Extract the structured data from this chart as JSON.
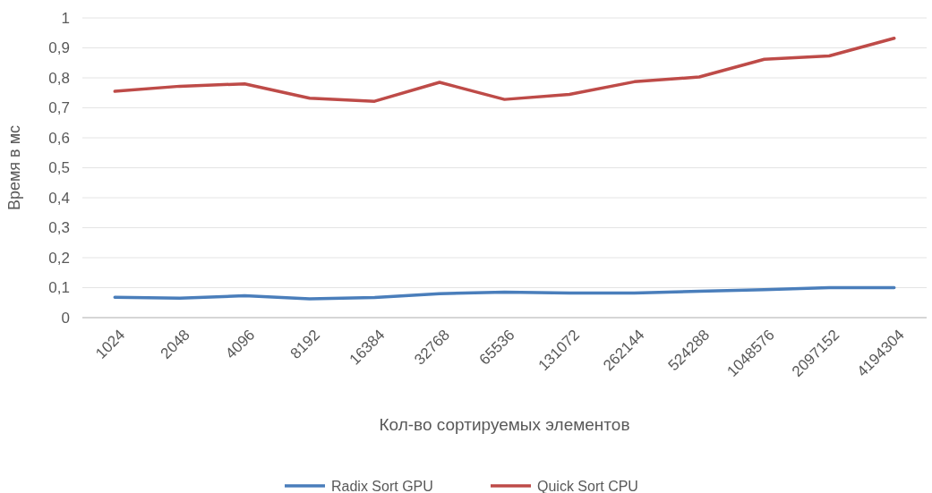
{
  "chart_data": {
    "type": "line",
    "xlabel": "Кол-во сортируемых элементов",
    "ylabel": "Время в мс",
    "categories": [
      "1024",
      "2048",
      "4096",
      "8192",
      "16384",
      "32768",
      "65536",
      "131072",
      "262144",
      "524288",
      "1048576",
      "2097152",
      "4194304"
    ],
    "series": [
      {
        "name": "Radix Sort GPU",
        "color": "#4a7ebb",
        "values": [
          0.068,
          0.065,
          0.073,
          0.063,
          0.067,
          0.08,
          0.085,
          0.082,
          0.082,
          0.088,
          0.093,
          0.1,
          0.1
        ]
      },
      {
        "name": "Quick Sort CPU",
        "color": "#be4b48",
        "values": [
          0.755,
          0.772,
          0.78,
          0.732,
          0.722,
          0.785,
          0.728,
          0.745,
          0.787,
          0.803,
          0.862,
          0.873,
          0.932
        ]
      }
    ],
    "ylim": [
      0,
      1
    ],
    "yticks": [
      0,
      {
        "value": 0.1,
        "label": "0,1"
      },
      {
        "value": 0.2,
        "label": "0,2"
      },
      {
        "value": 0.3,
        "label": "0,3"
      },
      {
        "value": 0.4,
        "label": "0,4"
      },
      {
        "value": 0.5,
        "label": "0,5"
      },
      {
        "value": 0.6,
        "label": "0,6"
      },
      {
        "value": 0.7,
        "label": "0,7"
      },
      {
        "value": 0.8,
        "label": "0,8"
      },
      {
        "value": 0.9,
        "label": "0,9"
      },
      1
    ],
    "grid": "y",
    "legend": "bottom",
    "marker": "none",
    "line_style": "solid"
  }
}
